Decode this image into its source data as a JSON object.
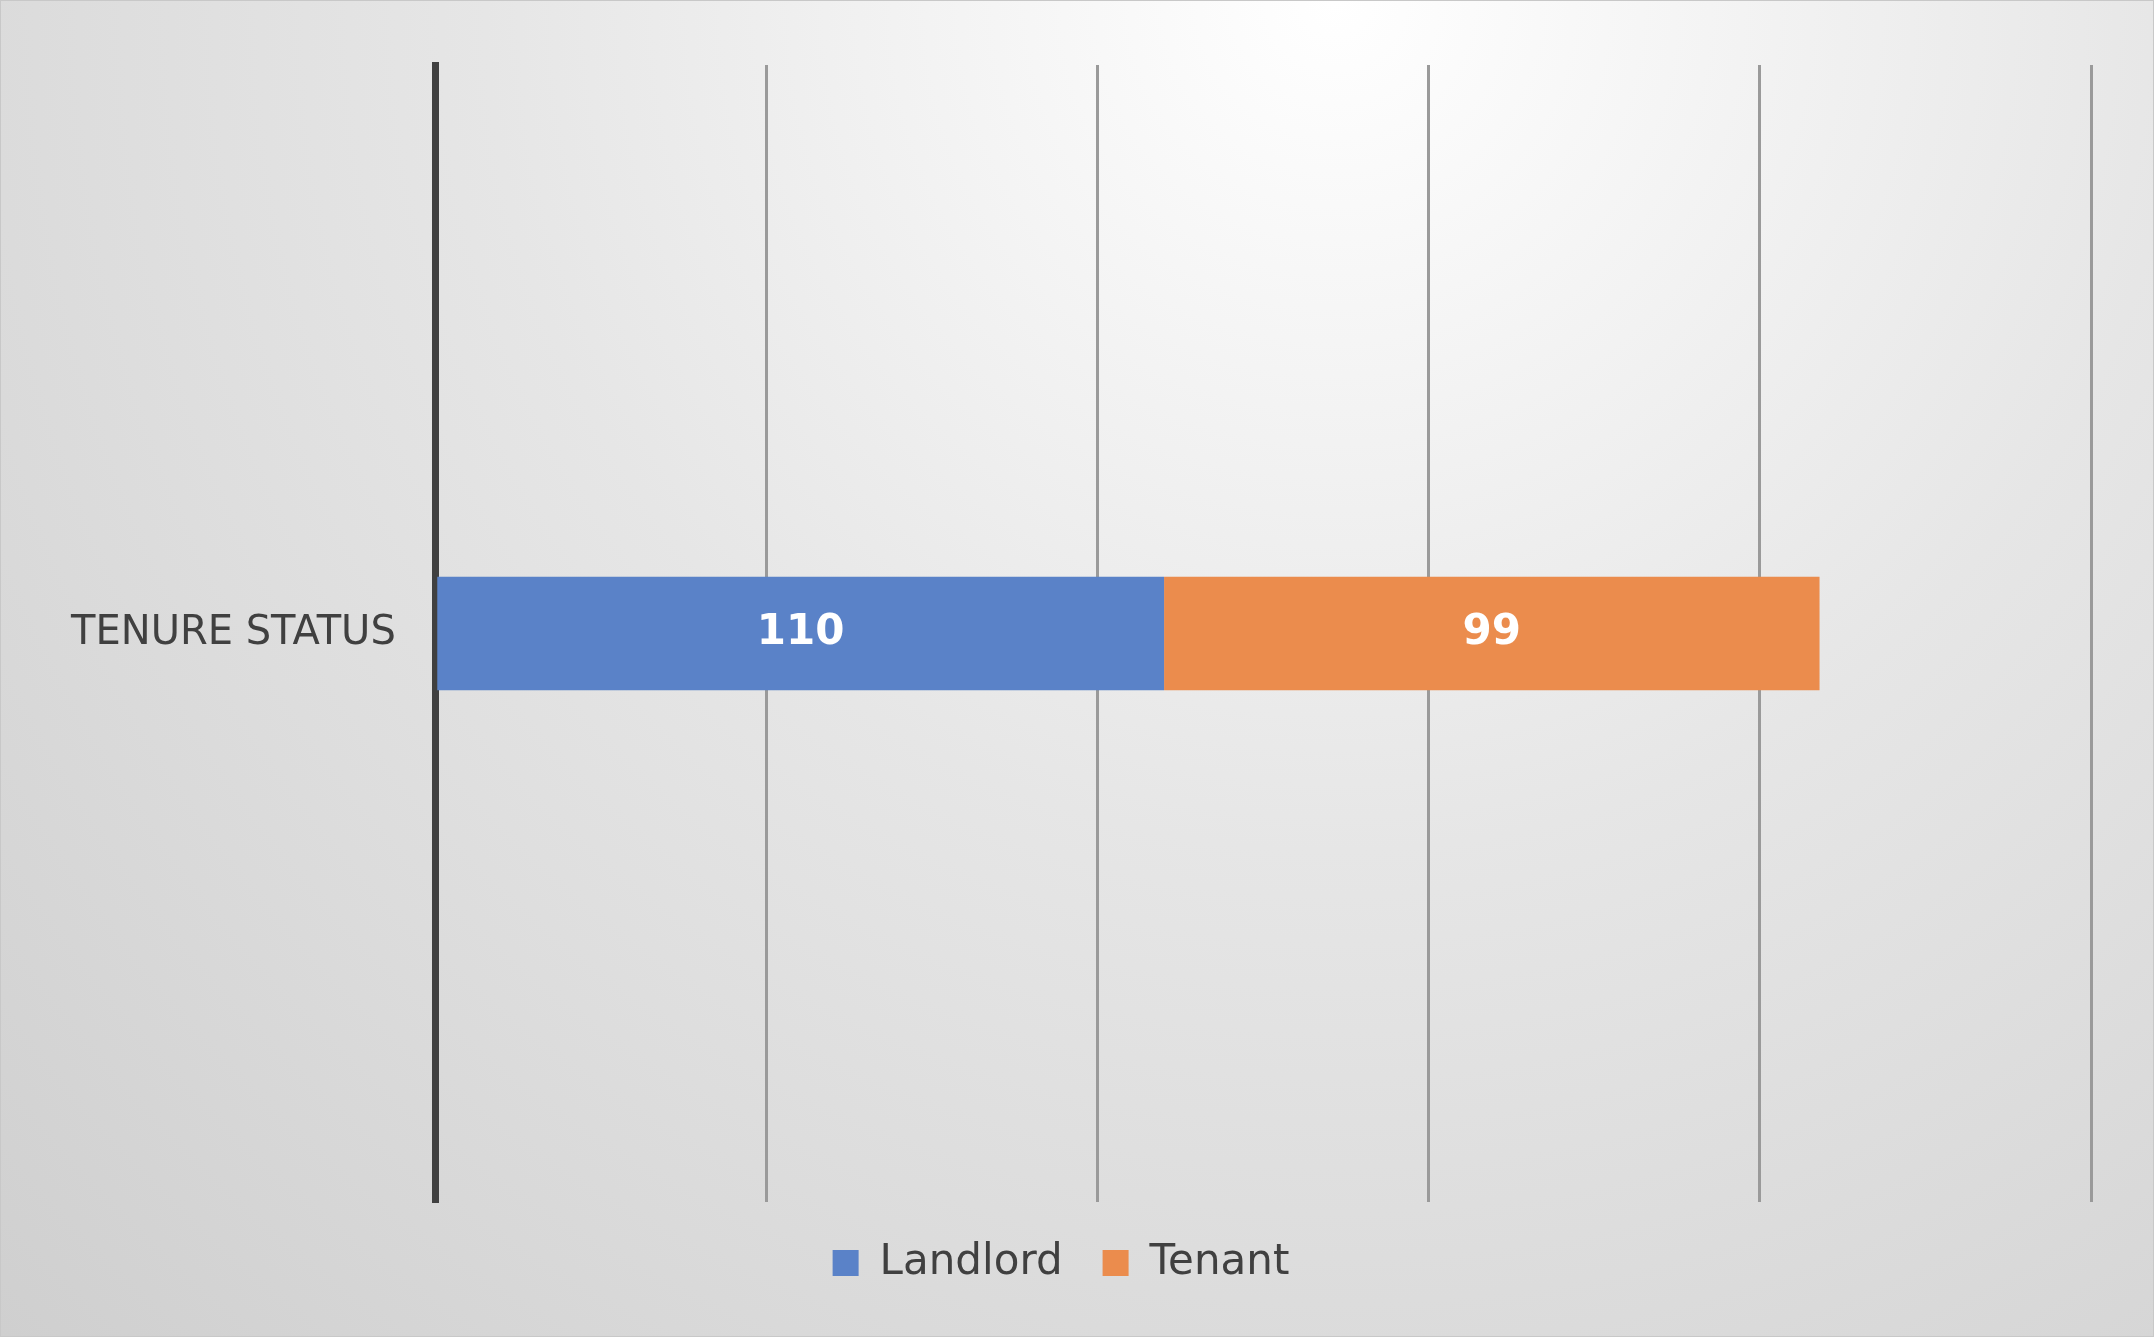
{
  "chart_data": {
    "type": "bar",
    "orientation": "horizontal",
    "stacked": true,
    "categories": [
      "TENURE STATUS"
    ],
    "series": [
      {
        "name": "Landlord",
        "color": "#5a82c8",
        "values": [
          110
        ]
      },
      {
        "name": "Tenant",
        "color": "#eb8c4d",
        "values": [
          99
        ]
      }
    ],
    "xlim": [
      0,
      250
    ],
    "xticks": [
      {
        "value": 0,
        "label": null
      },
      {
        "value": 50,
        "label": null
      },
      {
        "value": 100,
        "label": null
      },
      {
        "value": 150,
        "label": null
      },
      {
        "value": 200,
        "label": null
      },
      {
        "value": 250,
        "label": null
      }
    ],
    "grid": "x",
    "legend": "bottom",
    "tick_labels": "y",
    "data_labels": true
  }
}
